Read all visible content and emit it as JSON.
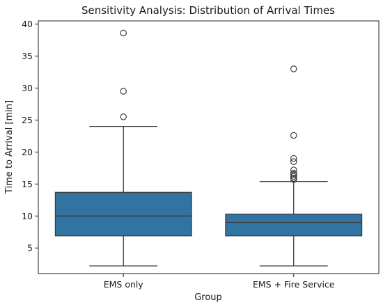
{
  "chart_data": {
    "type": "box",
    "title": "Sensitivity Analysis: Distribution of Arrival Times",
    "xlabel": "Group",
    "ylabel": "Time to Arrival [min]",
    "ylim": [
      1,
      40.5
    ],
    "yticks": [
      5,
      10,
      15,
      20,
      25,
      30,
      35,
      40
    ],
    "grid": false,
    "box_color": "#3274a1",
    "edge_color": "#3d3d3d",
    "categories": [
      "EMS only",
      "EMS + Fire Service"
    ],
    "boxes": [
      {
        "group": "EMS only",
        "whislo": 2.2,
        "q1": 6.9,
        "med": 10.0,
        "q3": 13.7,
        "whishi": 24.0,
        "fliers": [
          25.5,
          29.5,
          38.6
        ]
      },
      {
        "group": "EMS + Fire Service",
        "whislo": 2.2,
        "q1": 6.9,
        "med": 9.0,
        "q3": 10.3,
        "whishi": 15.4,
        "fliers": [
          15.7,
          15.9,
          16.2,
          16.5,
          16.7,
          17.2,
          18.5,
          19.0,
          22.6,
          33.0
        ]
      }
    ]
  }
}
